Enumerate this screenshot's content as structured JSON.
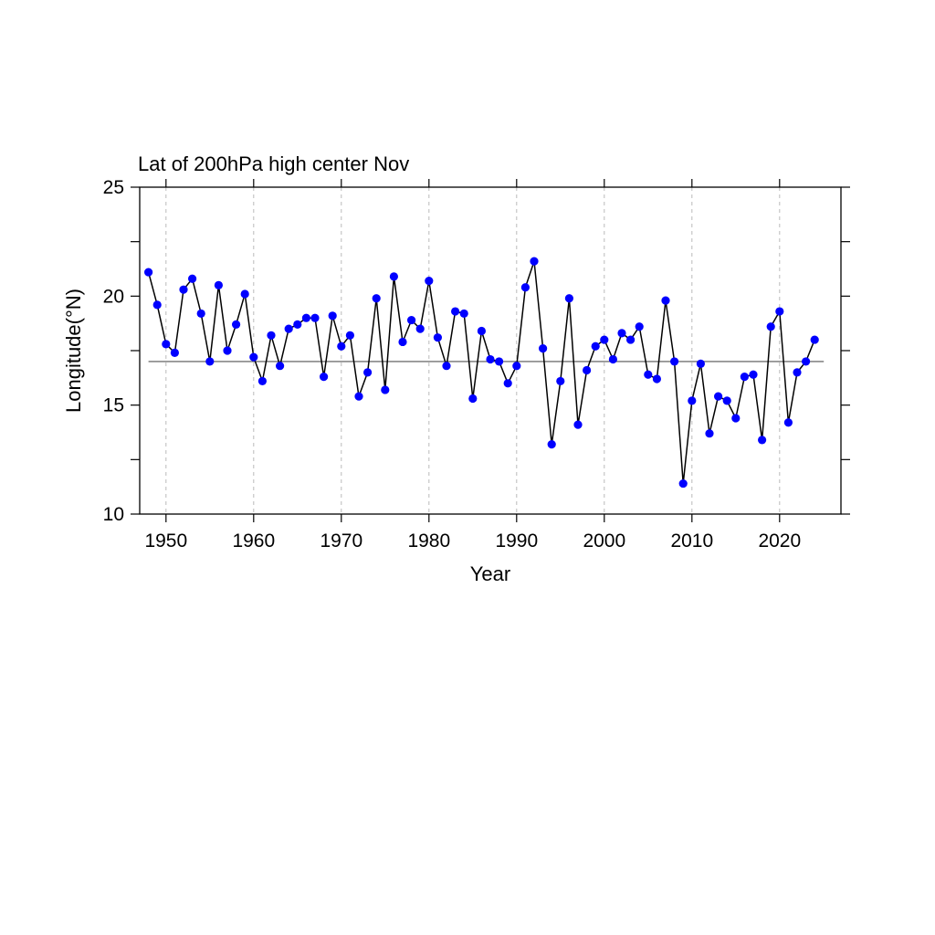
{
  "chart_data": {
    "type": "line",
    "title": "Lat of 200hPa high center Nov",
    "xlabel": "Year",
    "ylabel": "Longitude(°N)",
    "xlim": [
      1947,
      2027
    ],
    "ylim": [
      10,
      25
    ],
    "x_ticks": [
      1950,
      1960,
      1970,
      1980,
      1990,
      2000,
      2010,
      2020
    ],
    "y_ticks": [
      10,
      15,
      20,
      25
    ],
    "grid": "vertical dashed at x ticks",
    "reference_line": 17.0,
    "colors": {
      "line": "#000000",
      "marker": "#0000ff",
      "reference": "#555555",
      "grid": "#bbbbbb"
    },
    "series": [
      {
        "x": [
          1948,
          1949,
          1950,
          1951,
          1952,
          1953,
          1954,
          1955,
          1956,
          1957,
          1958,
          1959,
          1960,
          1961,
          1962,
          1963,
          1964,
          1965,
          1966,
          1967,
          1968,
          1969,
          1970,
          1971,
          1972,
          1973,
          1974,
          1975,
          1976,
          1977,
          1978,
          1979,
          1980,
          1981,
          1982,
          1983,
          1984,
          1985,
          1986,
          1987,
          1988,
          1989,
          1990,
          1991,
          1992,
          1993,
          1994,
          1995,
          1996,
          1997,
          1998,
          1999,
          2000,
          2001,
          2002,
          2003,
          2004,
          2005,
          2006,
          2007,
          2008,
          2009,
          2010,
          2011,
          2012,
          2013,
          2014,
          2015,
          2016,
          2017,
          2018,
          2019,
          2020,
          2021,
          2022,
          2023,
          2024
        ],
        "values": [
          21.1,
          19.6,
          17.8,
          17.4,
          20.3,
          20.8,
          19.2,
          17.0,
          20.5,
          17.5,
          18.7,
          20.1,
          17.2,
          16.1,
          18.2,
          16.8,
          18.5,
          18.7,
          19.0,
          19.0,
          16.3,
          19.1,
          17.7,
          18.2,
          15.4,
          16.5,
          19.9,
          15.7,
          20.9,
          17.9,
          18.9,
          18.5,
          20.7,
          18.1,
          16.8,
          19.3,
          19.2,
          15.3,
          18.4,
          17.1,
          17.0,
          16.0,
          16.8,
          20.4,
          21.6,
          17.6,
          13.2,
          16.1,
          19.9,
          14.1,
          16.6,
          17.7,
          18.0,
          17.1,
          18.3,
          18.0,
          18.6,
          16.4,
          16.2,
          19.8,
          17.0,
          11.4,
          15.2,
          16.9,
          13.7,
          15.4,
          15.2,
          14.4,
          16.3,
          16.4,
          13.4,
          18.6,
          19.3,
          14.2,
          16.5,
          17.0,
          18.0
        ]
      }
    ]
  }
}
